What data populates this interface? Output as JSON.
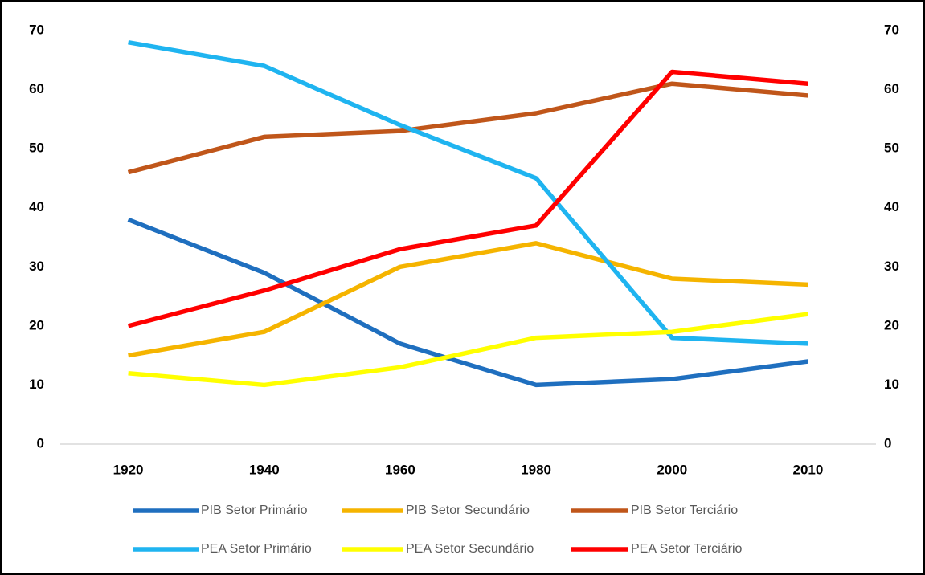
{
  "chart_data": {
    "type": "line",
    "categories": [
      "1920",
      "1940",
      "1960",
      "1980",
      "2000",
      "2010"
    ],
    "series": [
      {
        "name": "PIB Setor Primário",
        "color": "#1f6fbf",
        "values": [
          38,
          29,
          17,
          10,
          11,
          14
        ]
      },
      {
        "name": "PIB Setor Secundário",
        "color": "#f5b400",
        "values": [
          15,
          19,
          30,
          34,
          28,
          27
        ]
      },
      {
        "name": "PIB Setor Terciário",
        "color": "#c0561a",
        "values": [
          46,
          52,
          53,
          56,
          61,
          59
        ]
      },
      {
        "name": "PEA Setor Primário",
        "color": "#1fb4f0",
        "values": [
          68,
          64,
          54,
          45,
          18,
          17
        ]
      },
      {
        "name": "PEA Setor Secundário",
        "color": "#ffff00",
        "values": [
          12,
          10,
          13,
          18,
          19,
          22
        ]
      },
      {
        "name": "PEA Setor Terciário",
        "color": "#ff0000",
        "values": [
          20,
          26,
          33,
          37,
          63,
          61
        ]
      }
    ],
    "ylim": [
      0,
      70
    ],
    "yticks": [
      0,
      10,
      20,
      30,
      40,
      50,
      60,
      70
    ],
    "y2lim": [
      0,
      70
    ],
    "y2ticks": [
      0,
      10,
      20,
      30,
      40,
      50,
      60,
      70
    ],
    "legend": "bottom"
  }
}
